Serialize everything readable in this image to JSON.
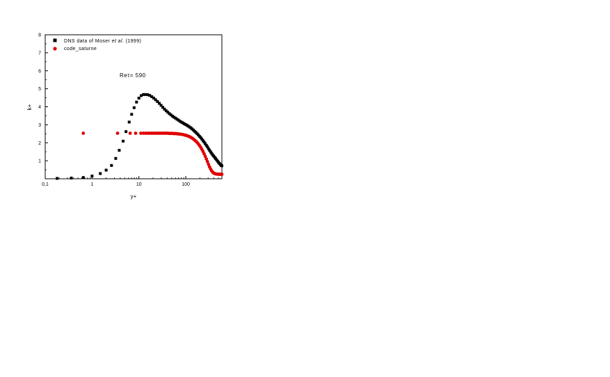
{
  "chart_data": {
    "type": "scatter",
    "xlabel": "y+",
    "ylabel": "k+",
    "xscale": "log",
    "xlim": [
      0.1,
      590
    ],
    "ylim": [
      0,
      8
    ],
    "x_ticks": [
      0.1,
      1,
      10,
      100
    ],
    "x_tick_labels": [
      "0,1",
      "1",
      "10",
      "100"
    ],
    "y_ticks": [
      1,
      2,
      3,
      4,
      5,
      6,
      7,
      8
    ],
    "y_tick_labels": [
      "1",
      "2",
      "3",
      "4",
      "5",
      "6",
      "7",
      "8"
    ],
    "annotation": "Reτ= 590",
    "grid": false,
    "legend_position": "top-left",
    "legend": {
      "prefix": "DNS data of Moser ",
      "italic": "et al.",
      "suffix": " (1999)"
    },
    "series": [
      {
        "name": "DNS data of Moser et al. (1999)",
        "marker": "square",
        "color": "#000000",
        "x": [
          0.18,
          0.36,
          0.65,
          1.0,
          1.5,
          2.0,
          2.6,
          3.2,
          3.8,
          4.6,
          5.3,
          6.2,
          7.0,
          7.9,
          8.9,
          10.0,
          11.2,
          12.5,
          13.9,
          15.4,
          17.0,
          18.8,
          20.7,
          22.7,
          24.9,
          27.2,
          29.7,
          32.3,
          35.1,
          38.1,
          41.2,
          44.6,
          48.2,
          52.0,
          56.0,
          60.3,
          64.9,
          69.7,
          74.8,
          80.2,
          86.0,
          92.0,
          98.4,
          105,
          112,
          120,
          128,
          136,
          145,
          154,
          164,
          174,
          185,
          196,
          208,
          220,
          233,
          246,
          260,
          275,
          290,
          306,
          322,
          339,
          357,
          375,
          394,
          414,
          434,
          455,
          477,
          500,
          523,
          547,
          572,
          590
        ],
        "y": [
          0.02,
          0.04,
          0.07,
          0.15,
          0.29,
          0.48,
          0.74,
          1.13,
          1.58,
          2.09,
          2.62,
          3.15,
          3.58,
          3.95,
          4.26,
          4.48,
          4.62,
          4.68,
          4.68,
          4.67,
          4.63,
          4.56,
          4.48,
          4.39,
          4.29,
          4.19,
          4.08,
          3.97,
          3.87,
          3.78,
          3.7,
          3.62,
          3.55,
          3.48,
          3.42,
          3.37,
          3.31,
          3.26,
          3.2,
          3.15,
          3.11,
          3.06,
          3.02,
          2.98,
          2.93,
          2.88,
          2.83,
          2.77,
          2.71,
          2.64,
          2.58,
          2.51,
          2.44,
          2.36,
          2.29,
          2.21,
          2.12,
          2.04,
          1.95,
          1.86,
          1.77,
          1.67,
          1.58,
          1.49,
          1.41,
          1.33,
          1.26,
          1.19,
          1.12,
          1.05,
          0.98,
          0.91,
          0.85,
          0.79,
          0.74,
          0.72
        ]
      },
      {
        "name": "code_saturne",
        "marker": "circle",
        "color": "#e00000",
        "x": [
          0.65,
          3.5,
          6.5,
          8.5,
          11.0,
          12.5,
          14.0,
          15.5,
          17.0,
          18.8,
          20.7,
          22.7,
          24.9,
          27.2,
          29.7,
          32.3,
          35.1,
          38.1,
          41.2,
          44.6,
          48.2,
          52.0,
          56.0,
          60.3,
          64.9,
          69.7,
          74.8,
          80.2,
          86.0,
          92.0,
          98.4,
          105,
          112,
          120,
          128,
          136,
          145,
          154,
          164,
          174,
          185,
          196,
          208,
          220,
          233,
          246,
          260,
          275,
          290,
          306,
          322,
          339,
          357,
          375,
          394,
          414,
          434,
          455,
          477,
          500,
          523,
          547,
          572,
          590
        ],
        "y": [
          2.53,
          2.53,
          2.53,
          2.53,
          2.53,
          2.53,
          2.53,
          2.53,
          2.53,
          2.53,
          2.53,
          2.53,
          2.53,
          2.53,
          2.53,
          2.53,
          2.53,
          2.53,
          2.53,
          2.52,
          2.52,
          2.52,
          2.51,
          2.51,
          2.5,
          2.49,
          2.48,
          2.47,
          2.46,
          2.44,
          2.42,
          2.4,
          2.37,
          2.34,
          2.3,
          2.26,
          2.21,
          2.15,
          2.09,
          2.02,
          1.94,
          1.85,
          1.75,
          1.64,
          1.52,
          1.39,
          1.25,
          1.1,
          0.95,
          0.8,
          0.66,
          0.54,
          0.44,
          0.37,
          0.32,
          0.29,
          0.27,
          0.26,
          0.26,
          0.25,
          0.25,
          0.25,
          0.25,
          0.25
        ]
      }
    ]
  }
}
